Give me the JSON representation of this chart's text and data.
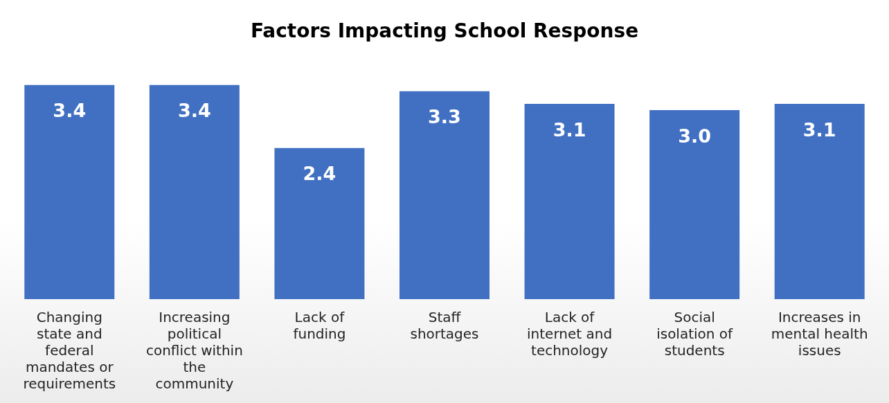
{
  "chart_data": {
    "type": "bar",
    "title": "Factors Impacting School Response",
    "categories": [
      "Changing state and federal mandates or requirements",
      "Increasing political conflict within the community",
      "Lack of funding",
      "Staff shortages",
      "Lack of internet and technology",
      "Social isolation of students",
      "Increases in mental health issues"
    ],
    "values": [
      3.4,
      3.4,
      2.4,
      3.3,
      3.1,
      3.0,
      3.1
    ],
    "value_labels": [
      "3.4",
      "3.4",
      "2.4",
      "3.3",
      "3.1",
      "3.0",
      "3.1"
    ],
    "color": "#4170c2"
  }
}
